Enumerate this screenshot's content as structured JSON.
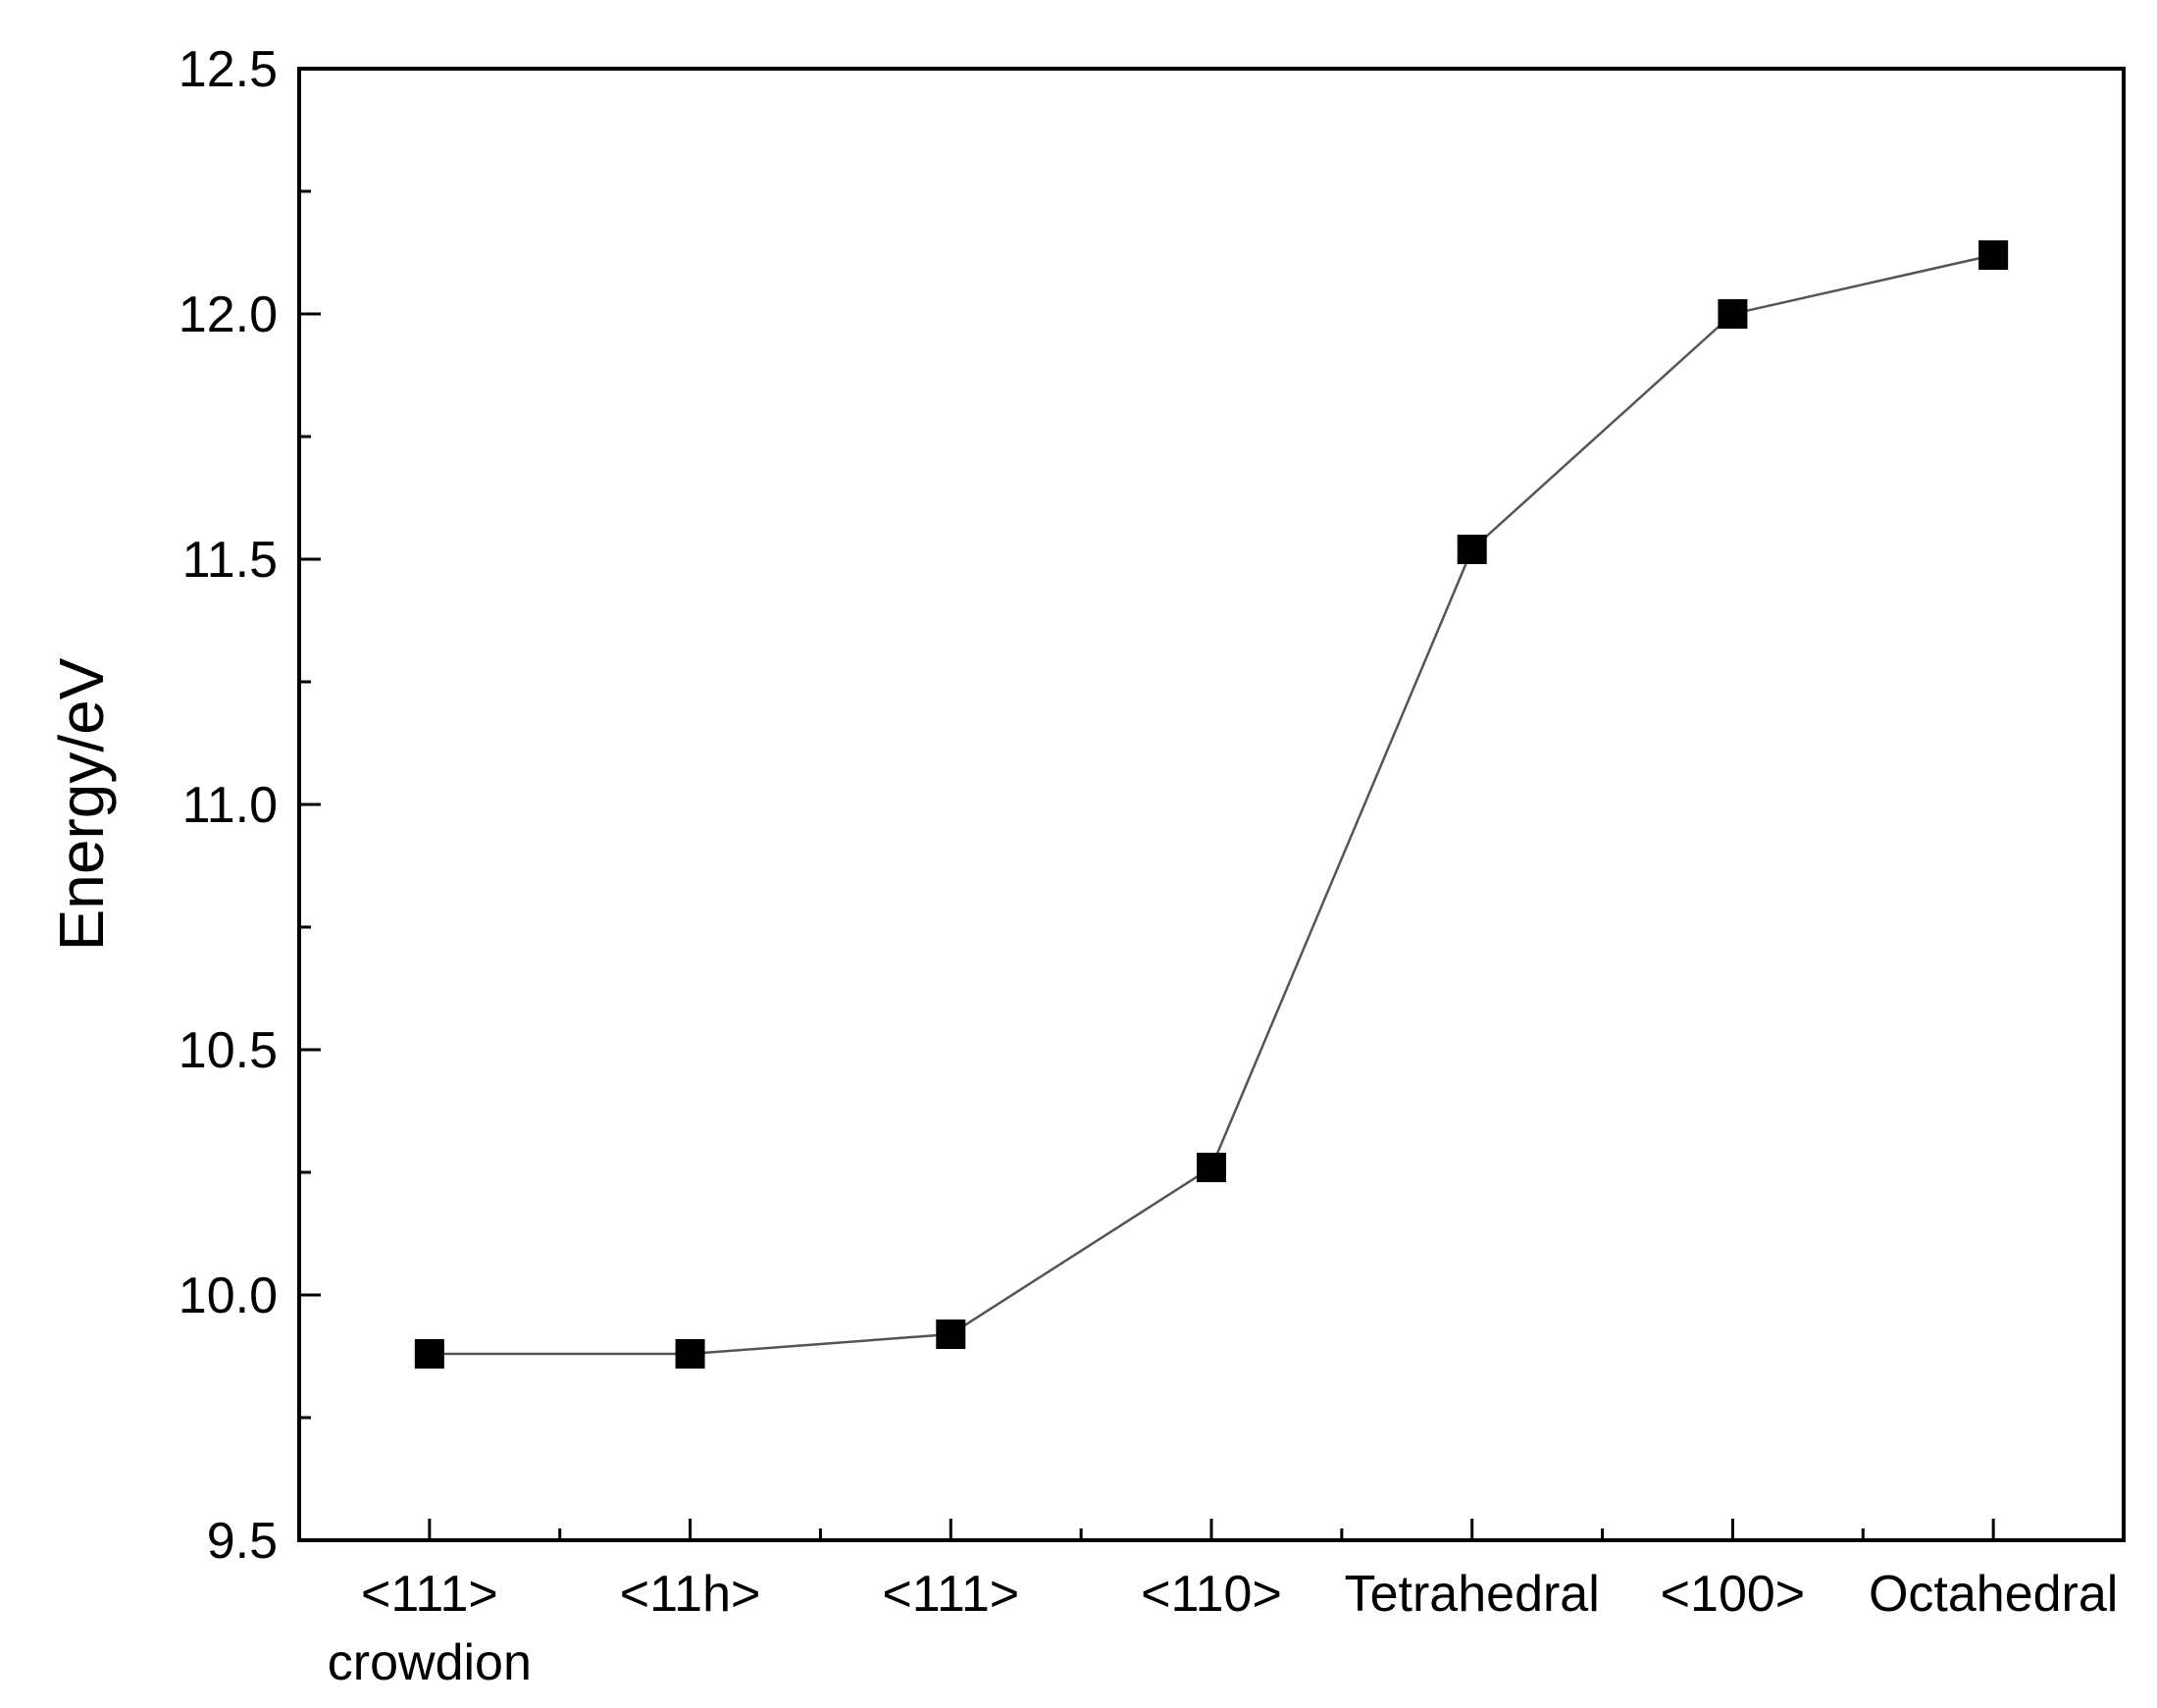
{
  "chart_data": {
    "type": "line",
    "title": "",
    "xlabel": "",
    "ylabel": "Energy/eV",
    "ylim": [
      9.5,
      12.5
    ],
    "yticks": [
      "9.5",
      "10.0",
      "10.5",
      "11.0",
      "11.5",
      "12.0",
      "12.5"
    ],
    "categories": [
      [
        "<111>",
        "crowdion"
      ],
      [
        "<11h>"
      ],
      [
        "<111>"
      ],
      [
        "<110>"
      ],
      [
        "Tetrahedral"
      ],
      [
        "<100>"
      ],
      [
        "Octahedral"
      ]
    ],
    "series": [
      {
        "values": [
          9.88,
          9.88,
          9.92,
          10.26,
          11.52,
          12.0,
          12.12
        ]
      }
    ],
    "marker": "square",
    "grid": false,
    "legend": "none",
    "colors": {
      "line": "#555555",
      "marker": "#000000",
      "axis": "#000000"
    }
  }
}
